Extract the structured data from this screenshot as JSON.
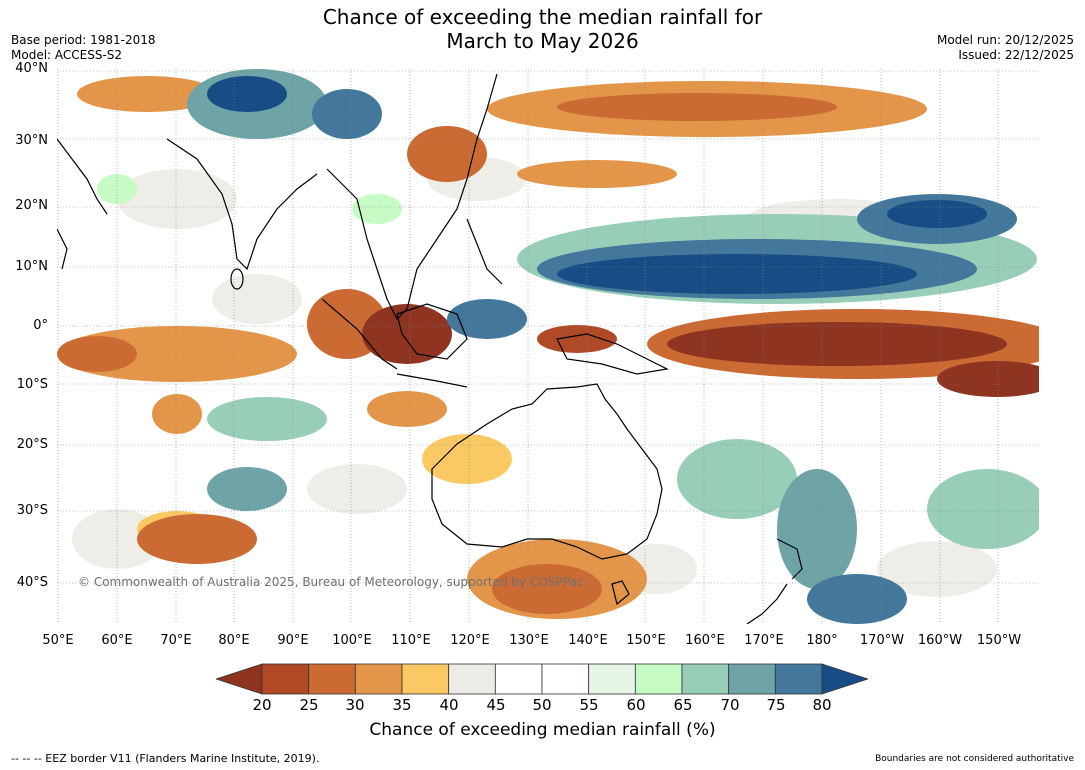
{
  "header": {
    "title_line1": "Chance of exceeding the median rainfall for",
    "title_line2": "March to May 2026",
    "base_period": "Base period: 1981-2018",
    "model": "Model: ACCESS-S2",
    "model_run": "Model run: 20/12/2025",
    "issued": "Issued: 22/12/2025"
  },
  "map": {
    "lat_labels": [
      "40°N",
      "30°N",
      "20°N",
      "10°N",
      "0°",
      "10°S",
      "20°S",
      "30°S",
      "40°S"
    ],
    "lon_labels": [
      "50°E",
      "60°E",
      "70°E",
      "80°E",
      "90°E",
      "100°E",
      "110°E",
      "120°E",
      "130°E",
      "140°E",
      "150°E",
      "160°E",
      "170°E",
      "180°",
      "170°W",
      "160°W",
      "150°W"
    ],
    "copyright": "© Commonwealth of Australia 2025, Bureau of Meteorology, supported by COSPPac"
  },
  "legend": {
    "ticks": [
      "20",
      "25",
      "30",
      "35",
      "40",
      "45",
      "50",
      "55",
      "60",
      "65",
      "70",
      "75",
      "80"
    ],
    "colors": [
      "#8e3420",
      "#b04a26",
      "#cc6a34",
      "#e3964a",
      "#fbc964",
      "#ecebe6",
      "#ffffff",
      "#ffffff",
      "#e6f5e6",
      "#c6fbc6",
      "#98ceb8",
      "#6ea4a6",
      "#43779b",
      "#184c85"
    ],
    "title": "Chance of exceeding median rainfall (%)"
  },
  "footer": {
    "eez": "--  --  -- EEZ border V11 (Flanders Marine Institute, 2019).",
    "disclaimer": "Boundaries are not considered authoritative"
  }
}
